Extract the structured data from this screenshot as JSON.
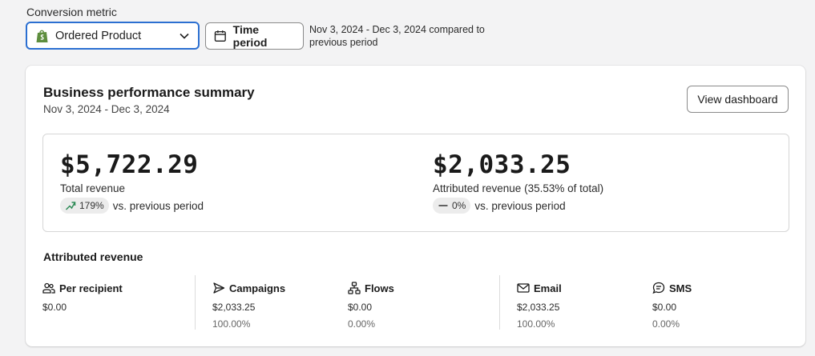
{
  "conversion": {
    "label": "Conversion metric",
    "selected": "Ordered Product"
  },
  "time_period": {
    "button_label": "Time period",
    "note": "Nov 3, 2024 - Dec 3, 2024 compared to previous period"
  },
  "summary": {
    "title": "Business performance summary",
    "date_range": "Nov 3, 2024 - Dec 3, 2024",
    "view_dashboard": "View dashboard",
    "total": {
      "value": "$5,722.29",
      "label": "Total revenue",
      "change": "179%",
      "compare": "vs. previous period"
    },
    "attributed": {
      "value": "$2,033.25",
      "label": "Attributed revenue (35.53% of total)",
      "change": "0%",
      "compare": "vs. previous period"
    }
  },
  "attributed_revenue": {
    "title": "Attributed revenue",
    "columns": [
      {
        "name": "Per recipient",
        "icon": "people-icon",
        "value": "$0.00",
        "pct": ""
      },
      {
        "name": "Campaigns",
        "icon": "send-icon",
        "value": "$2,033.25",
        "pct": "100.00%"
      },
      {
        "name": "Flows",
        "icon": "flow-icon",
        "value": "$0.00",
        "pct": "0.00%"
      },
      {
        "name": "Email",
        "icon": "mail-icon",
        "value": "$2,033.25",
        "pct": "100.00%"
      },
      {
        "name": "SMS",
        "icon": "sms-icon",
        "value": "$0.00",
        "pct": "0.00%"
      }
    ]
  },
  "colors": {
    "accent_border": "#2b6fd1",
    "shopify_green": "#5e8e3e",
    "trend_green": "#2e8b57"
  }
}
